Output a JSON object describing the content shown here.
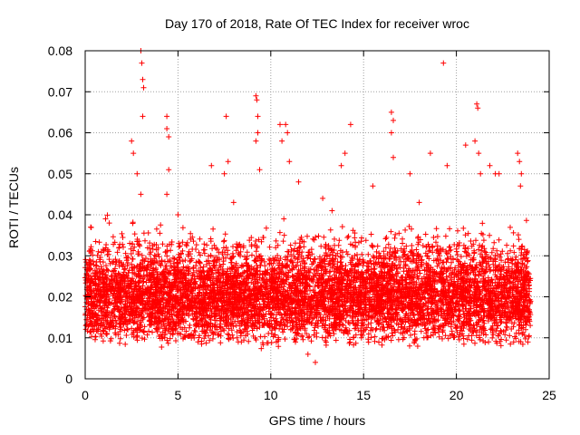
{
  "chart_data": {
    "type": "scatter",
    "title": "Day 170 of 2018, Rate Of TEC Index for receiver wroc",
    "xlabel": "GPS time / hours",
    "ylabel": "ROTI / TECUs",
    "xlim": [
      0,
      25
    ],
    "ylim": [
      0,
      0.08
    ],
    "xticks": [
      "0",
      "5",
      "10",
      "15",
      "20",
      "25"
    ],
    "yticks": [
      "0",
      "0.01",
      "0.02",
      "0.03",
      "0.04",
      "0.05",
      "0.06",
      "0.07",
      "0.08"
    ],
    "grid": true,
    "marker": "+",
    "color": "#ff0000",
    "series": [
      {
        "name": "ROTI",
        "dense_band": {
          "x_range": [
            0,
            24
          ],
          "y_low": 0.005,
          "y_high": 0.038
        },
        "outliers": [
          [
            1.1,
            0.039
          ],
          [
            1.3,
            0.038
          ],
          [
            2.5,
            0.058
          ],
          [
            2.6,
            0.055
          ],
          [
            2.8,
            0.05
          ],
          [
            3.0,
            0.08
          ],
          [
            3.05,
            0.077
          ],
          [
            3.1,
            0.073
          ],
          [
            3.15,
            0.071
          ],
          [
            3.1,
            0.064
          ],
          [
            3.0,
            0.045
          ],
          [
            4.4,
            0.064
          ],
          [
            4.4,
            0.061
          ],
          [
            4.5,
            0.059
          ],
          [
            4.5,
            0.051
          ],
          [
            4.4,
            0.045
          ],
          [
            6.8,
            0.052
          ],
          [
            7.5,
            0.05
          ],
          [
            7.6,
            0.064
          ],
          [
            7.7,
            0.053
          ],
          [
            9.2,
            0.069
          ],
          [
            9.25,
            0.068
          ],
          [
            9.3,
            0.064
          ],
          [
            9.3,
            0.06
          ],
          [
            9.2,
            0.058
          ],
          [
            9.4,
            0.051
          ],
          [
            10.5,
            0.062
          ],
          [
            10.6,
            0.058
          ],
          [
            10.8,
            0.062
          ],
          [
            10.9,
            0.06
          ],
          [
            11.0,
            0.053
          ],
          [
            11.5,
            0.048
          ],
          [
            12.8,
            0.044
          ],
          [
            13.8,
            0.052
          ],
          [
            14.0,
            0.055
          ],
          [
            14.3,
            0.062
          ],
          [
            15.5,
            0.047
          ],
          [
            16.5,
            0.065
          ],
          [
            16.6,
            0.063
          ],
          [
            16.5,
            0.06
          ],
          [
            16.6,
            0.054
          ],
          [
            17.5,
            0.05
          ],
          [
            18.6,
            0.055
          ],
          [
            19.3,
            0.077
          ],
          [
            19.5,
            0.052
          ],
          [
            20.5,
            0.057
          ],
          [
            21.1,
            0.067
          ],
          [
            21.15,
            0.066
          ],
          [
            21.0,
            0.058
          ],
          [
            21.2,
            0.055
          ],
          [
            21.3,
            0.05
          ],
          [
            21.8,
            0.052
          ],
          [
            22.1,
            0.05
          ],
          [
            22.3,
            0.05
          ],
          [
            23.3,
            0.055
          ],
          [
            23.4,
            0.053
          ],
          [
            23.5,
            0.05
          ],
          [
            23.45,
            0.047
          ],
          [
            12.4,
            0.004
          ],
          [
            12.0,
            0.006
          ],
          [
            0.3,
            0.037
          ],
          [
            5.0,
            0.04
          ],
          [
            8.0,
            0.043
          ],
          [
            13.3,
            0.041
          ],
          [
            18.0,
            0.043
          ]
        ]
      }
    ]
  }
}
